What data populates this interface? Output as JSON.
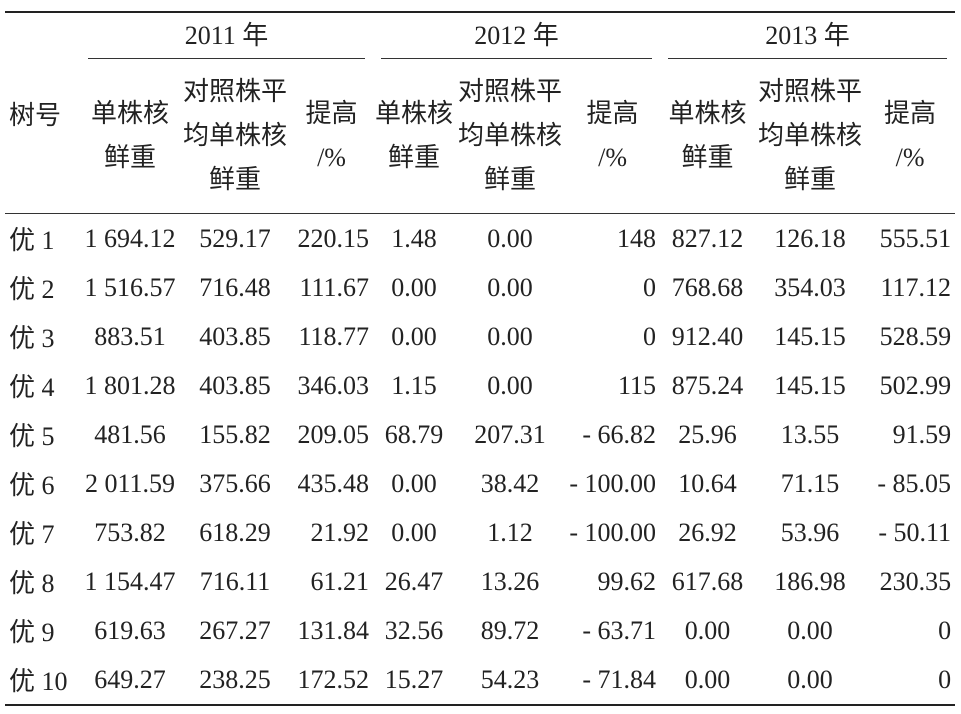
{
  "table": {
    "corner": "树号",
    "years": [
      "2011 年",
      "2012 年",
      "2013 年"
    ],
    "subheaders": [
      [
        "单株核",
        "鲜重"
      ],
      [
        "对照株平",
        "均单株核",
        "鲜重"
      ],
      [
        "提高",
        "/%"
      ]
    ],
    "rows": [
      [
        "优 1",
        "1 694.12",
        "529.17",
        "220.15",
        "1.48",
        "0.00",
        "148",
        "827.12",
        "126.18",
        "555.51"
      ],
      [
        "优 2",
        "1 516.57",
        "716.48",
        "111.67",
        "0.00",
        "0.00",
        "0",
        "768.68",
        "354.03",
        "117.12"
      ],
      [
        "优 3",
        "883.51",
        "403.85",
        "118.77",
        "0.00",
        "0.00",
        "0",
        "912.40",
        "145.15",
        "528.59"
      ],
      [
        "优 4",
        "1 801.28",
        "403.85",
        "346.03",
        "1.15",
        "0.00",
        "115",
        "875.24",
        "145.15",
        "502.99"
      ],
      [
        "优 5",
        "481.56",
        "155.82",
        "209.05",
        "68.79",
        "207.31",
        "- 66.82",
        "25.96",
        "13.55",
        "91.59"
      ],
      [
        "优 6",
        "2 011.59",
        "375.66",
        "435.48",
        "0.00",
        "38.42",
        "- 100.00",
        "10.64",
        "71.15",
        "- 85.05"
      ],
      [
        "优 7",
        "753.82",
        "618.29",
        "21.92",
        "0.00",
        "1.12",
        "- 100.00",
        "26.92",
        "53.96",
        "- 50.11"
      ],
      [
        "优 8",
        "1 154.47",
        "716.11",
        "61.21",
        "26.47",
        "13.26",
        "99.62",
        "617.68",
        "186.98",
        "230.35"
      ],
      [
        "优 9",
        "619.63",
        "267.27",
        "131.84",
        "32.56",
        "89.72",
        "- 63.71",
        "0.00",
        "0.00",
        "0"
      ],
      [
        "优 10",
        "649.27",
        "238.25",
        "172.52",
        "15.27",
        "54.23",
        "- 71.84",
        "0.00",
        "0.00",
        "0"
      ]
    ]
  }
}
